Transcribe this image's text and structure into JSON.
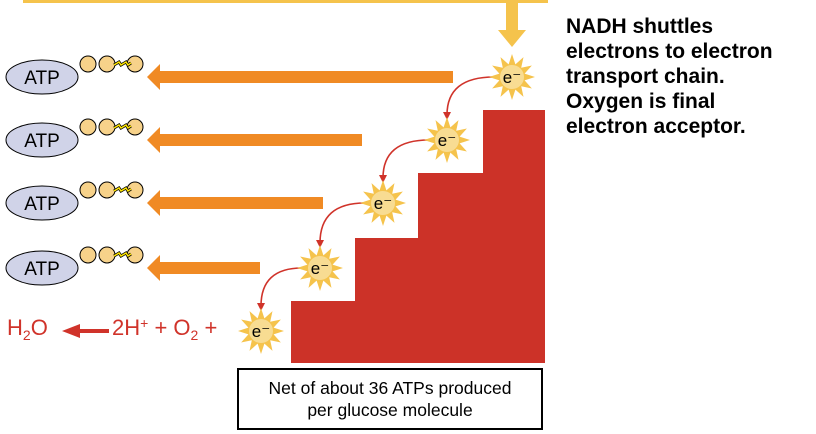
{
  "caption_lines": [
    "NADH shuttles",
    "electrons to electron",
    "transport chain.",
    "Oxygen is final",
    "electron acceptor."
  ],
  "atp_label": "ATP",
  "electron_label": "e⁻",
  "equation": {
    "product": "H",
    "product_sub": "2",
    "product_end": "O",
    "h_part": "2H",
    "h_sup": "+",
    "plus1": "+ O",
    "o_sub": "2",
    "plus2": "+"
  },
  "net_box": {
    "line1": "Net of about 36 ATPs produced",
    "line2": "per glucose molecule"
  },
  "colors": {
    "stairs": "#cc3228",
    "orange_arrow": "#f08a24",
    "yellow": "#f5c34c",
    "atp": "#d0d3e8",
    "red_text": "#d0332a"
  }
}
